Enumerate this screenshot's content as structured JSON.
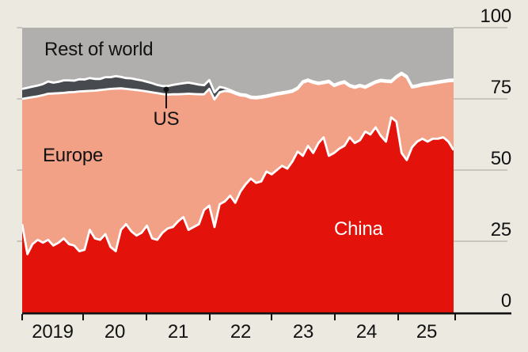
{
  "chart_data": {
    "type": "area",
    "stacked": true,
    "unit": "%",
    "total": 100,
    "x_axis": {
      "start": "2019-01",
      "end": "2025-12",
      "labels": [
        "2019",
        "20",
        "21",
        "22",
        "23",
        "24",
        "25"
      ]
    },
    "y_axis": {
      "ticks": [
        100,
        75,
        50,
        25,
        0
      ],
      "range": [
        0,
        100
      ],
      "side": "right"
    },
    "series": [
      {
        "name": "China",
        "color": "#e3120b",
        "label_text_color": "#ffffff",
        "values": [
          31,
          20.5,
          24,
          25.5,
          24.5,
          25.5,
          23.5,
          24.5,
          26,
          24,
          23.5,
          21.5,
          22,
          29,
          26,
          25.5,
          27.5,
          23,
          21.5,
          29,
          31,
          28.5,
          27,
          28,
          30.5,
          26,
          25.5,
          28,
          29.5,
          30,
          32,
          33.5,
          29,
          30,
          31,
          36,
          37.5,
          30,
          38,
          39,
          41,
          38.5,
          42.5,
          45,
          47,
          45.5,
          46,
          49.5,
          48.5,
          50,
          51.5,
          50.5,
          53,
          56.5,
          55,
          58.5,
          56,
          59.5,
          61.5,
          55,
          56,
          57.5,
          58.5,
          61.5,
          59.5,
          60.5,
          63.5,
          62.5,
          65,
          62,
          60,
          68.5,
          67,
          56,
          53.5,
          58,
          60,
          61,
          60,
          61,
          61,
          61.5,
          60,
          57
        ]
      },
      {
        "name": "Europe",
        "color": "#f2a186",
        "values": [
          44,
          54.8,
          51.6,
          50.4,
          51.8,
          51.3,
          53.4,
          52.5,
          51.1,
          53.3,
          53.9,
          56.1,
          55.7,
          48.8,
          51.9,
          52.6,
          50.8,
          55.5,
          57.1,
          49.7,
          47.5,
          49.8,
          51.1,
          49.9,
          47.1,
          51.3,
          51.5,
          48.7,
          47,
          46.6,
          44.6,
          43.2,
          47.8,
          46.7,
          45.6,
          40.6,
          41,
          44.8,
          39.3,
          38.8,
          36.5,
          38.3,
          33.7,
          31,
          28.3,
          29.7,
          29.4,
          26.2,
          27.6,
          26.5,
          25.3,
          26.6,
          24.5,
          22,
          25.7,
          22.8,
          24.6,
          20.7,
          19,
          25.9,
          23.5,
          22.7,
          22.2,
          17.9,
          19.4,
          18.9,
          15.4,
          17.3,
          15.7,
          19.2,
          21,
          12.4,
          15.5,
          27.7,
          29,
          21,
          19.3,
          18.8,
          20,
          19.3,
          19.6,
          19.4,
          21.2,
          24.3
        ]
      },
      {
        "name": "US",
        "color": "#474b4f",
        "values": [
          3.5,
          3.6,
          3.7,
          3.8,
          3.9,
          4.3,
          3.8,
          4.0,
          4.4,
          4.2,
          4.0,
          4.3,
          4.1,
          4.5,
          4.1,
          3.9,
          4.3,
          4.1,
          4.4,
          4.0,
          3.8,
          3.9,
          3.7,
          3.6,
          3.4,
          3.2,
          2.9,
          2.8,
          3.0,
          3.3,
          3.6,
          3.8,
          3.9,
          3.7,
          3.4,
          3.2,
          3.1,
          2.5,
          1.9,
          1.0,
          0.6,
          0.5,
          0.5,
          0.5,
          0.5,
          0.5,
          0.5,
          0.5,
          0.5,
          0.5,
          0.5,
          0.5,
          0.5,
          0.5,
          0.5,
          0.5,
          0.5,
          0.5,
          0.5,
          0.5,
          0.5,
          0.5,
          0.5,
          0.5,
          0.5,
          0.5,
          0.5,
          0.5,
          0.5,
          0.5,
          0.5,
          0.5,
          0.5,
          0.5,
          0.5,
          0.5,
          0.5,
          0.5,
          0.5,
          0.5,
          0.5,
          0.5,
          0.5,
          0.5
        ]
      },
      {
        "name": "Rest of world",
        "color": "#b0afae",
        "derived": "remainder to 100"
      }
    ],
    "separator_color": "#ffffff",
    "annotations": [
      {
        "target": "US",
        "style": "dot-and-line-pointer"
      }
    ],
    "grid": "right-margin ticks only",
    "legend": "in-chart labels"
  },
  "colors": {
    "background": "#ece9e0",
    "text": "#121212",
    "gridline": "#bdbbb2",
    "axis_line": "#121212"
  }
}
